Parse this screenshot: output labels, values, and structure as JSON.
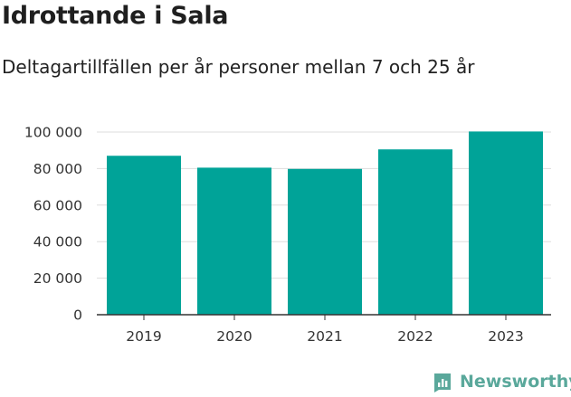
{
  "header": {
    "title": "Idrottande i Sala",
    "subtitle": "Deltagartillfällen per år personer mellan 7 och 25 år"
  },
  "brand": {
    "name": "Newsworthy",
    "color": "#5aa89b"
  },
  "colors": {
    "bar": "#00a398",
    "grid": "#dddddd",
    "axis": "#333333"
  },
  "chart_data": {
    "type": "bar",
    "categories": [
      "2019",
      "2020",
      "2021",
      "2022",
      "2023"
    ],
    "values": [
      87000,
      80500,
      79800,
      90500,
      100300
    ],
    "ylim": [
      0,
      100000
    ],
    "yticks": [
      0,
      20000,
      40000,
      60000,
      80000,
      100000
    ],
    "ytick_labels": [
      "0",
      "20 000",
      "40 000",
      "60 000",
      "80 000",
      "100 000"
    ],
    "grid": true,
    "legend": "none"
  }
}
